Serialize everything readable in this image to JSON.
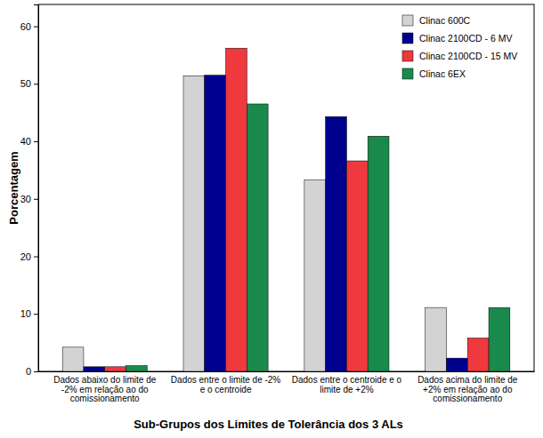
{
  "chart_data": {
    "type": "bar",
    "y_label": "Porcentagem",
    "x_label": "Sub-Grupos dos Limites de Tolerância dos 3 ALs",
    "categories": [
      "Dados abaixo do limite de -2% em relação ao do comissionamento",
      "Dados entre o limite de -2% e o centroide",
      "Dados entre o centroide e o limite de +2%",
      "Dados acima do limite de +2% em relação ao do comissionamento"
    ],
    "series": [
      {
        "name": "Clinac 600C",
        "color": "#d3d3d3",
        "values": [
          4.2,
          51.4,
          33.3,
          11.1
        ]
      },
      {
        "name": "Clinac 2100CD - 6 MV",
        "color": "#00008f",
        "values": [
          0.8,
          51.5,
          44.3,
          2.3
        ]
      },
      {
        "name": "Clinac 2100CD - 15 MV",
        "color": "#f0383f",
        "values": [
          0.8,
          56.2,
          36.6,
          5.8
        ]
      },
      {
        "name": "Clinac 6EX",
        "color": "#1a8a4c",
        "values": [
          1.0,
          46.5,
          40.9,
          11.1
        ]
      }
    ],
    "ylim": [
      0,
      63.8
    ],
    "yticks": [
      0,
      10,
      20,
      30,
      40,
      50,
      60
    ],
    "grid": false,
    "legend": "upper right"
  }
}
